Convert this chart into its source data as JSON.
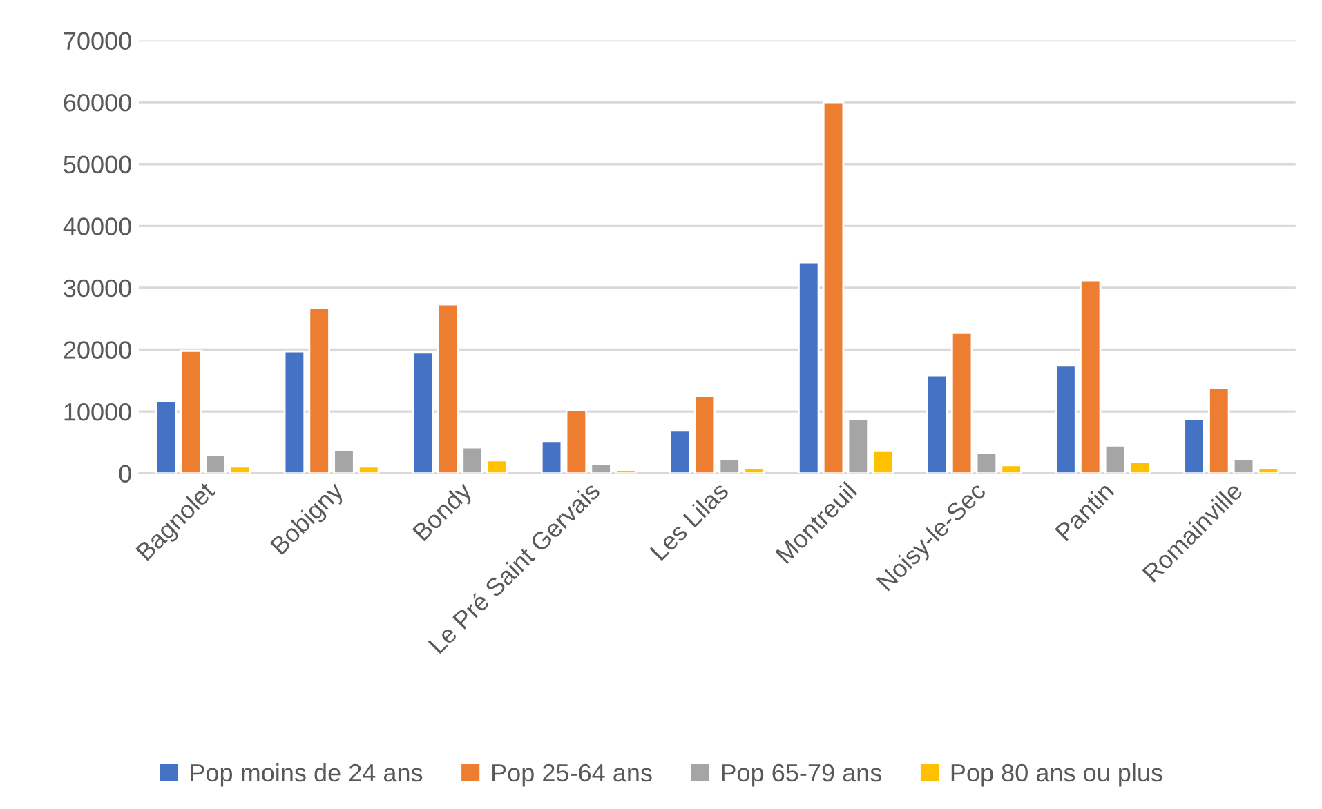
{
  "chart_data": {
    "type": "bar",
    "categories": [
      "Bagnolet",
      "Bobigny",
      "Bondy",
      "Le Pré Saint Gervais",
      "Les Lilas",
      "Montreuil",
      "Noisy-le-Sec",
      "Pantin",
      "Romainville"
    ],
    "series": [
      {
        "name": "Pop moins de 24 ans",
        "color": "#4472c4",
        "values": [
          11700,
          19700,
          19500,
          5100,
          6900,
          34100,
          15800,
          17500,
          8700
        ]
      },
      {
        "name": "Pop 25-64 ans",
        "color": "#ed7d31",
        "values": [
          19800,
          26800,
          27300,
          10200,
          12500,
          60000,
          22700,
          31200,
          13800
        ]
      },
      {
        "name": "Pop 65-79 ans",
        "color": "#a5a5a5",
        "values": [
          3000,
          3700,
          4200,
          1500,
          2300,
          8800,
          3300,
          4500,
          2300
        ]
      },
      {
        "name": "Pop 80 ans ou plus",
        "color": "#ffc000",
        "values": [
          1100,
          1100,
          2100,
          500,
          900,
          3600,
          1300,
          1800,
          800
        ]
      }
    ],
    "ylim": [
      0,
      70000
    ],
    "yticks": [
      0,
      10000,
      20000,
      30000,
      40000,
      50000,
      60000,
      70000
    ],
    "grid": "y",
    "legend": "bottom"
  }
}
